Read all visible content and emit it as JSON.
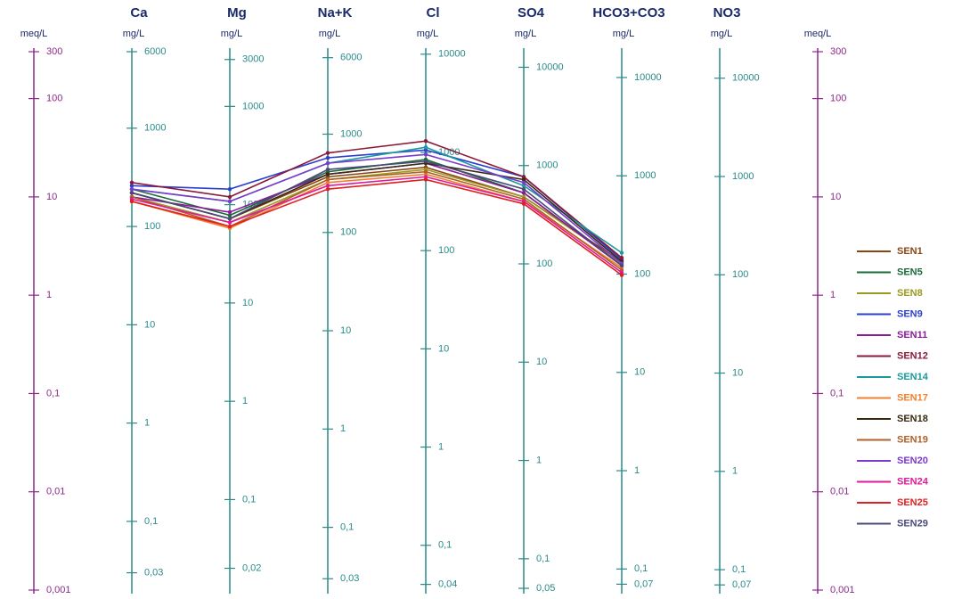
{
  "chart_data": {
    "type": "line",
    "log_scale": true,
    "ylabel": "meq/L",
    "ylim": [
      0.001,
      300
    ],
    "yticks": [
      300,
      100,
      10,
      1,
      {
        "value": 0.1,
        "label": "0,1"
      },
      {
        "value": 0.01,
        "label": "0,01"
      },
      {
        "value": 0.001,
        "label": "0,001"
      }
    ],
    "categories": [
      "Ca",
      "Mg",
      "Na+K",
      "Cl",
      "SO4",
      "HCO3+CO3",
      "NO3"
    ],
    "axes": [
      {
        "unit": "mg/L",
        "ylim": [
          0.02,
          6000
        ],
        "yticks": [
          6000,
          1000,
          100,
          10,
          1,
          {
            "value": 0.1,
            "label": "0,1"
          },
          {
            "value": 0.03,
            "label": "0,03"
          }
        ]
      },
      {
        "unit": "mg/L",
        "ylim": [
          0.012,
          3600
        ],
        "yticks": [
          3000,
          1000,
          100,
          10,
          1,
          {
            "value": 0.1,
            "label": "0,1"
          },
          {
            "value": 0.02,
            "label": "0,02"
          }
        ]
      },
      {
        "unit": "mg/L",
        "ylim": [
          0.023,
          6900
        ],
        "yticks": [
          6000,
          1000,
          100,
          10,
          1,
          {
            "value": 0.1,
            "label": "0,1"
          },
          {
            "value": 0.03,
            "label": "0,03"
          }
        ]
      },
      {
        "unit": "mg/L",
        "ylim": [
          0.035,
          10600
        ],
        "yticks": [
          10000,
          1000,
          100,
          10,
          1,
          {
            "value": 0.1,
            "label": "0,1"
          },
          {
            "value": 0.04,
            "label": "0,04"
          }
        ]
      },
      {
        "unit": "mg/L",
        "ylim": [
          0.048,
          14400
        ],
        "yticks": [
          10000,
          1000,
          100,
          10,
          1,
          {
            "value": 0.1,
            "label": "0,1"
          },
          {
            "value": 0.05,
            "label": "0,05"
          }
        ]
      },
      {
        "unit": "mg/L",
        "ylim": [
          0.061,
          18300
        ],
        "yticks": [
          10000,
          1000,
          100,
          10,
          1,
          {
            "value": 0.1,
            "label": "0,1"
          },
          {
            "value": 0.07,
            "label": "0,07"
          }
        ]
      },
      {
        "unit": "mg/L",
        "ylim": [
          0.062,
          18600
        ],
        "yticks": [
          10000,
          1000,
          100,
          10,
          1,
          {
            "value": 0.1,
            "label": "0,1"
          },
          {
            "value": 0.07,
            "label": "0,07"
          }
        ]
      }
    ],
    "series": [
      {
        "name": "SEN1",
        "color": "#8b4513",
        "values": [
          11,
          6,
          16,
          20,
          10,
          2.2,
          null
        ]
      },
      {
        "name": "SEN5",
        "color": "#1a6b3a",
        "values": [
          12,
          6.5,
          18,
          24,
          11,
          2.0,
          null
        ]
      },
      {
        "name": "SEN8",
        "color": "#9a9a20",
        "values": [
          10,
          5.5,
          15,
          19,
          10,
          2.1,
          null
        ]
      },
      {
        "name": "SEN9",
        "color": "#2a3fd0",
        "values": [
          13,
          12,
          25,
          30,
          16,
          2.3,
          null
        ]
      },
      {
        "name": "SEN11",
        "color": "#8a1a9a",
        "values": [
          10,
          7,
          17,
          22,
          11,
          2.0,
          null
        ]
      },
      {
        "name": "SEN12",
        "color": "#8b1a3a",
        "values": [
          14,
          10,
          28,
          37,
          16,
          2.4,
          null
        ]
      },
      {
        "name": "SEN14",
        "color": "#1a9a9a",
        "values": [
          12,
          9,
          22,
          32,
          13,
          2.7,
          null
        ]
      },
      {
        "name": "SEN17",
        "color": "#f08030",
        "values": [
          9,
          4.8,
          14,
          17,
          9,
          1.9,
          null
        ]
      },
      {
        "name": "SEN18",
        "color": "#3a2a10",
        "values": [
          11,
          6,
          17,
          22,
          15,
          2.2,
          null
        ]
      },
      {
        "name": "SEN19",
        "color": "#b0602a",
        "values": [
          10,
          5,
          15,
          18,
          9.5,
          1.8,
          null
        ]
      },
      {
        "name": "SEN20",
        "color": "#7a3ad0",
        "values": [
          12,
          9,
          22,
          27,
          14,
          2.1,
          null
        ]
      },
      {
        "name": "SEN24",
        "color": "#e01a9a",
        "values": [
          9.5,
          5.5,
          13,
          16,
          9,
          1.7,
          null
        ]
      },
      {
        "name": "SEN25",
        "color": "#e02020",
        "values": [
          9,
          5,
          12,
          15,
          8.5,
          1.6,
          null
        ]
      },
      {
        "name": "SEN29",
        "color": "#4a4a7a",
        "values": [
          11,
          6,
          19,
          23,
          12,
          2.0,
          null
        ]
      }
    ]
  }
}
